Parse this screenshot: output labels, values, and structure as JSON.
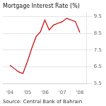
{
  "chart_data": {
    "type": "line",
    "title": "Mortgage Interest Rate (%)",
    "annotations": [
      "Source: Central Bank of Bahrain"
    ],
    "x": [
      2004.0,
      2004.25,
      2004.5,
      2004.75,
      2005.0,
      2005.25,
      2005.5,
      2005.75,
      2006.0,
      2006.25,
      2006.5,
      2006.75,
      2007.0,
      2007.25,
      2007.5,
      2007.75,
      2008.0
    ],
    "values": [
      6.6,
      6.4,
      6.2,
      6.1,
      6.8,
      7.6,
      8.3,
      8.6,
      9.3,
      8.7,
      9.0,
      9.1,
      9.2,
      9.4,
      9.3,
      9.2,
      8.55
    ],
    "color": "#cc0000",
    "xlim": [
      2003.6,
      2008.4
    ],
    "xticks": [
      {
        "value": 2004,
        "label": "'04"
      },
      {
        "value": 2005,
        "label": "'05"
      },
      {
        "value": 2006,
        "label": "'06"
      },
      {
        "value": 2007,
        "label": "'07"
      },
      {
        "value": 2008,
        "label": "'08"
      }
    ],
    "ylim": [
      5.5,
      9.75
    ],
    "yticks": [
      5.5,
      6.5,
      7.5,
      8.5,
      9.5
    ],
    "grid": "y"
  }
}
